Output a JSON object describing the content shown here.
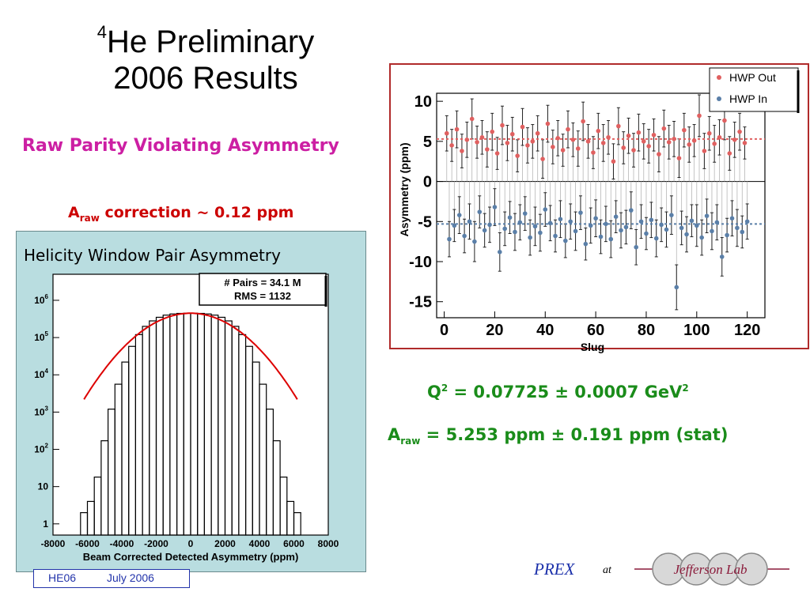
{
  "slide": {
    "title_sup": "4",
    "title_line1": "He Preliminary",
    "title_line2": "2006  Results",
    "subtitle": "Raw Parity Violating Asymmetry",
    "correction_main": "A",
    "correction_sub": "raw",
    "correction_rest": " correction ~ 0.12 ppm",
    "q2_prefix": "Q",
    "q2_sup": "2",
    "q2_rest": " = 0.07725 ± 0.0007 GeV",
    "q2_unit_sup": "2",
    "araw_main": "A",
    "araw_sub": "raw",
    "araw_rest": " = 5.253 ppm ± 0.191 ppm (stat)",
    "footer_conf": "HE06",
    "footer_date": "July  2006",
    "prex": "PREX",
    "at": "at",
    "logo_text": "Jefferson Lab"
  },
  "colors": {
    "hwp_out": "#e06060",
    "hwp_in": "#5a7fa8",
    "hist_panel_bg": "#b9dde0",
    "subtitle": "#cc1fa3",
    "result_green": "#1a8c1a",
    "fit_red": "#dd0000"
  },
  "chart_data": [
    {
      "type": "bar",
      "title": "Helicity Window Pair Asymmetry",
      "xlabel": "Beam Corrected Detected Asymmetry (ppm)",
      "ylabel": "",
      "xlim": [
        -8000,
        8000
      ],
      "ylim": [
        0.5,
        5000000
      ],
      "yscale": "log",
      "x_ticks": [
        "-8000",
        "-6000",
        "-4000",
        "-2000",
        "0",
        "2000",
        "4000",
        "6000",
        "8000"
      ],
      "y_ticks": [
        {
          "base": "1",
          "exp": ""
        },
        {
          "base": "10",
          "exp": ""
        },
        {
          "base": "10",
          "exp": "2"
        },
        {
          "base": "10",
          "exp": "3"
        },
        {
          "base": "10",
          "exp": "4"
        },
        {
          "base": "10",
          "exp": "5"
        },
        {
          "base": "10",
          "exp": "6"
        }
      ],
      "stats": [
        "# Pairs = 34.1 M",
        "RMS = 1132"
      ],
      "peak": 450000,
      "rms": 1132,
      "x": [
        -6200,
        -5800,
        -5400,
        -5000,
        -4600,
        -4200,
        -3800,
        -3400,
        -3000,
        -2600,
        -2200,
        -1800,
        -1400,
        -1000,
        -600,
        -200,
        200,
        600,
        1000,
        1400,
        1800,
        2200,
        2600,
        3000,
        3400,
        3800,
        4200,
        4600,
        5000,
        5400,
        5800,
        6200
      ],
      "values": [
        2,
        4,
        18,
        170,
        1200,
        5600,
        22000,
        58000,
        120000,
        200000,
        280000,
        350000,
        400000,
        430000,
        445000,
        450000,
        450000,
        445000,
        430000,
        400000,
        350000,
        280000,
        200000,
        120000,
        58000,
        22000,
        5600,
        1200,
        170,
        18,
        4,
        2
      ],
      "grid": false,
      "legend": "none"
    },
    {
      "type": "scatter",
      "title": "",
      "xlabel": "Slug",
      "ylabel": "Asymmetry (ppm)",
      "xlim": [
        -3,
        127
      ],
      "ylim": [
        -17,
        11
      ],
      "x_ticks": [
        "0",
        "20",
        "40",
        "60",
        "80",
        "100",
        "120"
      ],
      "y_ticks": [
        "10",
        "5",
        "0",
        "-5",
        "-10",
        "-15"
      ],
      "legend_position": "top-right",
      "fit_lines": [
        {
          "series": "HWP Out",
          "y": 5.3
        },
        {
          "series": "HWP In",
          "y": -5.3
        }
      ],
      "series": [
        {
          "name": "HWP Out",
          "x": [
            1,
            3,
            5,
            7,
            9,
            11,
            13,
            15,
            17,
            19,
            21,
            23,
            25,
            27,
            29,
            31,
            33,
            35,
            37,
            39,
            41,
            43,
            45,
            47,
            49,
            51,
            53,
            55,
            57,
            59,
            61,
            63,
            65,
            67,
            69,
            71,
            73,
            75,
            77,
            79,
            81,
            83,
            85,
            87,
            89,
            91,
            93,
            95,
            97,
            99,
            101,
            103,
            105,
            107,
            109,
            111,
            113,
            115,
            117,
            119
          ],
          "values": [
            6.0,
            4.5,
            6.5,
            3.8,
            5.2,
            7.8,
            4.9,
            5.5,
            4.0,
            6.2,
            3.5,
            7.0,
            4.8,
            5.9,
            3.2,
            6.8,
            4.5,
            5.0,
            6.0,
            2.8,
            7.2,
            4.3,
            5.4,
            3.9,
            6.5,
            5.2,
            4.1,
            7.5,
            5.0,
            3.6,
            6.3,
            4.8,
            5.5,
            2.5,
            6.9,
            4.2,
            5.7,
            3.9,
            6.1,
            5.0,
            4.4,
            5.8,
            3.4,
            6.6,
            4.9,
            5.3,
            2.9,
            6.4,
            4.6,
            5.1,
            8.2,
            3.8,
            6.0,
            4.7,
            5.5,
            7.6,
            3.5,
            5.2,
            6.2,
            4.8
          ],
          "errors": [
            2.2,
            2.0,
            2.3,
            2.1,
            2.2,
            2.5,
            2.0,
            2.1,
            2.2,
            2.3,
            2.0,
            2.4,
            2.2,
            2.1,
            2.0,
            2.3,
            2.2,
            2.1,
            2.2,
            2.4,
            2.3,
            2.1,
            2.2,
            2.0,
            2.3,
            2.1,
            2.2,
            2.4,
            2.1,
            2.0,
            2.2,
            2.3,
            2.1,
            2.2,
            2.3,
            2.0,
            2.2,
            2.1,
            2.3,
            2.2,
            2.1,
            2.0,
            2.2,
            2.3,
            2.1,
            2.2,
            2.4,
            2.1,
            2.2,
            2.0,
            2.6,
            2.2,
            2.1,
            2.3,
            2.2,
            2.4,
            2.1,
            2.2,
            2.3,
            2.0
          ]
        },
        {
          "name": "HWP In",
          "x": [
            2,
            4,
            6,
            8,
            10,
            12,
            14,
            16,
            18,
            20,
            22,
            24,
            26,
            28,
            30,
            32,
            34,
            36,
            38,
            40,
            42,
            44,
            46,
            48,
            50,
            52,
            54,
            56,
            58,
            60,
            62,
            64,
            66,
            68,
            70,
            72,
            74,
            76,
            78,
            80,
            82,
            84,
            86,
            88,
            90,
            92,
            94,
            96,
            98,
            100,
            102,
            104,
            106,
            108,
            110,
            112,
            114,
            116,
            118,
            120
          ],
          "values": [
            -7.2,
            -5.5,
            -4.2,
            -6.8,
            -5.0,
            -7.5,
            -3.8,
            -6.1,
            -5.4,
            -3.2,
            -8.8,
            -5.9,
            -4.5,
            -6.3,
            -5.1,
            -4.0,
            -7.0,
            -5.6,
            -6.4,
            -3.5,
            -5.2,
            -6.8,
            -4.7,
            -7.4,
            -5.0,
            -6.2,
            -3.9,
            -7.8,
            -5.5,
            -4.6,
            -6.9,
            -5.3,
            -7.2,
            -4.4,
            -6.1,
            -5.7,
            -3.6,
            -8.2,
            -5.0,
            -6.5,
            -4.8,
            -7.1,
            -5.4,
            -6.0,
            -4.2,
            -13.2,
            -5.8,
            -6.6,
            -4.9,
            -5.5,
            -7.0,
            -4.3,
            -6.2,
            -5.1,
            -9.4,
            -6.7,
            -4.6,
            -5.8,
            -6.3,
            -5.0
          ],
          "errors": [
            2.2,
            2.0,
            2.3,
            2.1,
            2.2,
            2.5,
            2.0,
            2.1,
            2.2,
            2.3,
            2.4,
            2.1,
            2.0,
            2.3,
            2.2,
            2.1,
            2.2,
            2.4,
            2.3,
            2.1,
            2.2,
            2.0,
            2.3,
            2.1,
            2.2,
            2.4,
            2.1,
            2.0,
            2.2,
            2.3,
            2.1,
            2.2,
            2.3,
            2.0,
            2.2,
            2.1,
            2.3,
            2.2,
            2.1,
            2.0,
            2.2,
            2.3,
            2.1,
            2.2,
            2.4,
            2.8,
            2.1,
            2.2,
            2.0,
            2.6,
            2.2,
            2.1,
            2.3,
            2.2,
            2.4,
            2.1,
            2.2,
            2.3,
            2.0,
            2.2
          ]
        }
      ]
    }
  ]
}
